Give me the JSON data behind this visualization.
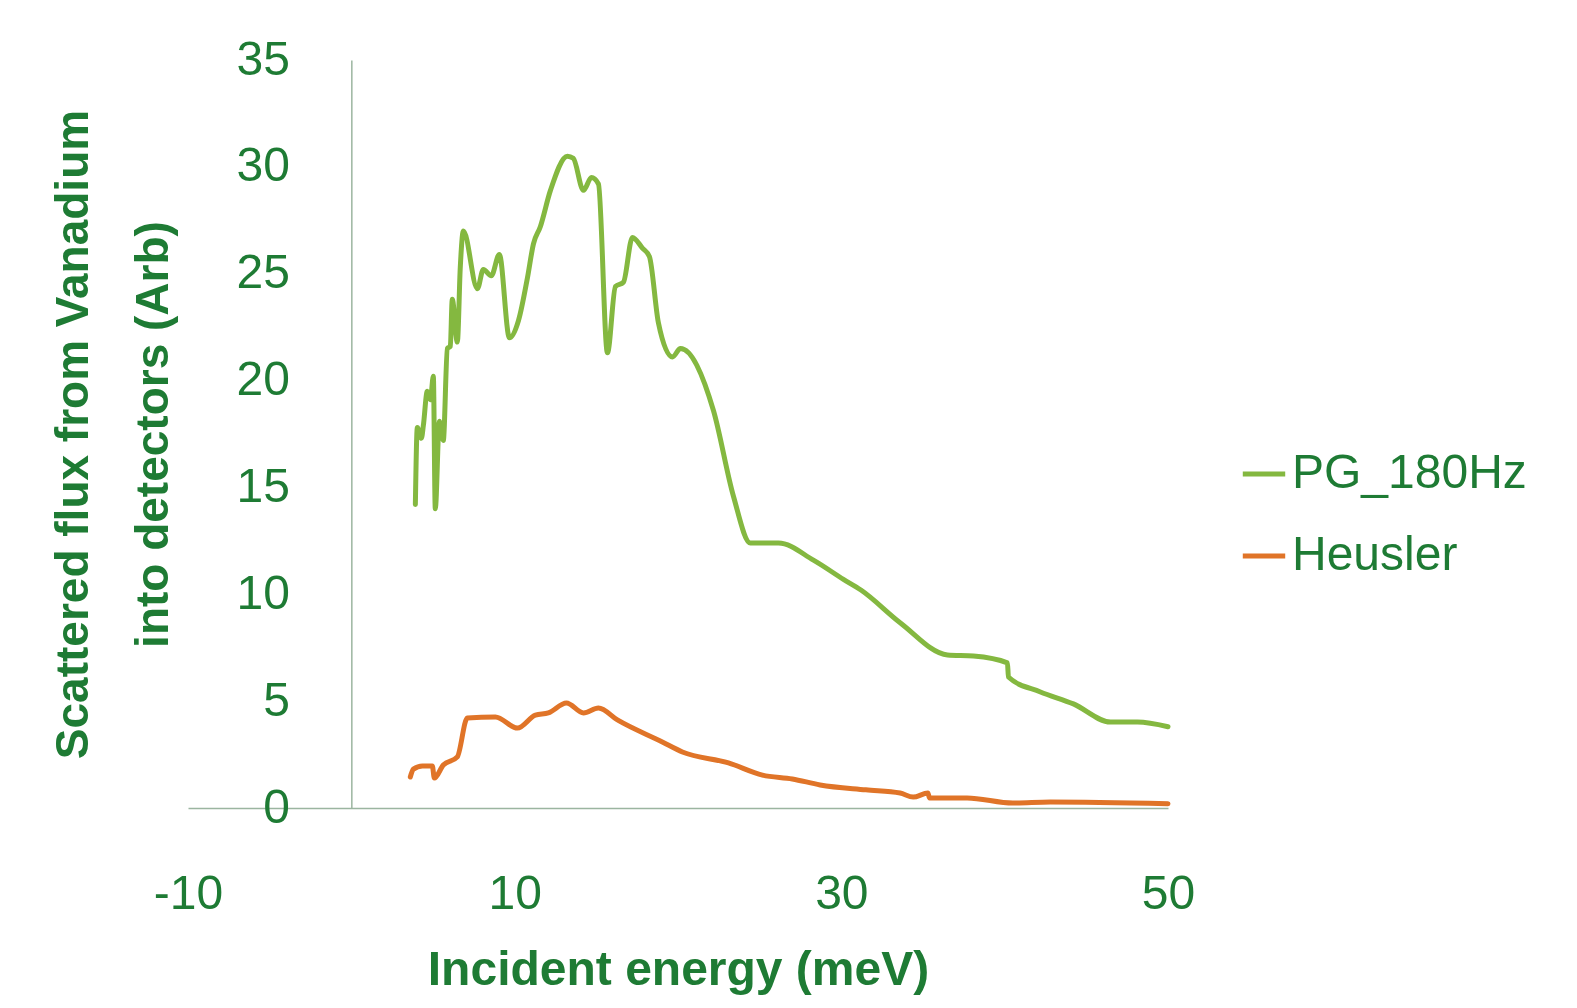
{
  "chart_data": {
    "type": "line",
    "xlabel": "Incident energy (meV)",
    "ylabel": "Scattered flux from Vanadium\ninto detectors (Arb)",
    "xlim": [
      -10,
      50
    ],
    "xticks": [
      -10,
      10,
      30,
      50
    ],
    "ylim": [
      0,
      35
    ],
    "yticks": [
      0,
      5,
      10,
      15,
      20,
      25,
      30,
      35
    ],
    "legend": "right",
    "series": [
      {
        "name": "PG_180Hz",
        "color": "#84b840",
        "x": [
          3.92,
          4.04,
          4.29,
          4.41,
          4.65,
          4.84,
          5.02,
          5.14,
          5.39,
          5.63,
          5.88,
          6.06,
          6.18,
          6.49,
          6.67,
          6.86,
          7.72,
          8.08,
          8.57,
          9.06,
          9.68,
          10.23,
          10.78,
          11.15,
          11.57,
          12.19,
          13.23,
          13.59,
          14.21,
          14.7,
          15.13,
          15.68,
          16.17,
          16.66,
          17.21,
          17.82,
          18.25,
          18.8,
          19.66,
          20.15,
          22.17,
          23.39,
          24.43,
          26.15,
          28.29,
          30.13,
          31.2,
          33.62,
          36.5,
          38.09,
          40.17,
          40.23,
          42.19,
          44.21,
          46.48,
          48.13,
          50
        ],
        "values": [
          14.2,
          17.8,
          17.3,
          17.9,
          19.5,
          19.1,
          20.2,
          14,
          18.1,
          17.2,
          21.5,
          21.6,
          23.8,
          21.8,
          25.3,
          27,
          24.3,
          25.2,
          24.9,
          25.9,
          22,
          22.8,
          24.8,
          26.4,
          27.2,
          28.9,
          30.5,
          30.4,
          28.9,
          29.5,
          29.2,
          21.3,
          24.4,
          24.6,
          26.7,
          26.2,
          25.8,
          22.7,
          21.1,
          21.5,
          18.6,
          14.6,
          12.4,
          12.4,
          11.6,
          10.7,
          10.2,
          8.66,
          7.16,
          7.11,
          6.79,
          6.13,
          5.43,
          4.87,
          4.02,
          4.02,
          3.8
        ]
      },
      {
        "name": "Heusler",
        "color": "#e07428",
        "x": [
          3.61,
          3.8,
          4.35,
          4.96,
          5.08,
          5.63,
          6.49,
          7.1,
          8.82,
          10.17,
          11.27,
          12.06,
          13.17,
          14.21,
          15.13,
          16.29,
          19.04,
          20.27,
          23.09,
          25.17,
          27,
          28.7,
          31.5,
          33.6,
          34.4,
          35.3,
          35.4,
          37.7,
          40.5,
          42.8,
          50
        ],
        "values": [
          1.45,
          1.82,
          1.97,
          1.97,
          1.4,
          2.01,
          2.39,
          4.21,
          4.26,
          3.74,
          4.35,
          4.45,
          4.91,
          4.45,
          4.68,
          4.12,
          3.09,
          2.62,
          2.11,
          1.54,
          1.36,
          1.08,
          0.85,
          0.7,
          0.51,
          0.7,
          0.47,
          0.47,
          0.23,
          0.28,
          0.2
        ]
      }
    ]
  }
}
